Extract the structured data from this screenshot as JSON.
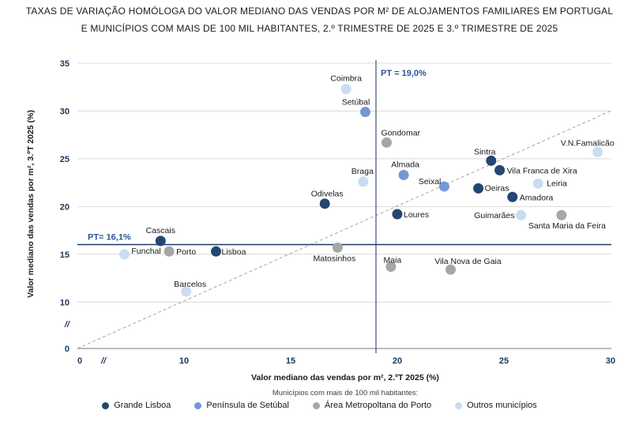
{
  "title": {
    "line1": "TAXAS DE VARIAÇÃO HOMÓLOGA DO VALOR MEDIANO DAS VENDAS POR M² DE ALOJAMENTOS FAMILIARES EM PORTUGAL",
    "line2": "E MUNICÍPIOS COM MAIS DE 100 MIL HABITANTES, 2.º TRIMESTRE DE 2025 E 3.º TRIMESTRE DE 2025"
  },
  "chart_data": {
    "type": "scatter",
    "xlabel": "Valor mediano das vendas por m², 2.ºT 2025 (%)",
    "ylabel": "Valor mediano das vendas por m², 3.ºT 2025 (%)",
    "axes": {
      "x": {
        "ticks": [
          10,
          15,
          20,
          25,
          30
        ],
        "zero_label": "0",
        "break_symbol": "//",
        "range_shown": [
          0,
          30
        ]
      },
      "y": {
        "ticks": [
          10,
          15,
          20,
          25,
          30,
          35
        ],
        "zero_label": "0",
        "break_symbol": "//",
        "range_shown": [
          0,
          35
        ]
      }
    },
    "grid": "horizontal-only",
    "legend_position": "bottom",
    "reference_lines": {
      "vertical": {
        "label": "PT = 19,0%",
        "value": 19.0,
        "color": "#3A5380"
      },
      "horizontal": {
        "label": "PT= 16,1%",
        "value": 16.1,
        "color": "#1F3864"
      },
      "diagonal": {
        "style": "dashed",
        "description": "identity line y = x",
        "color": "#A6A6A6"
      }
    },
    "series": [
      {
        "name": "Grande Lisboa",
        "color": "#234672",
        "points": [
          {
            "label": "Sintra",
            "x": 24.4,
            "y": 24.8,
            "anchor": "middle",
            "dx": -8,
            "dy": -8
          },
          {
            "label": "Vila Franca de Xira",
            "x": 24.8,
            "y": 23.8,
            "anchor": "start",
            "dx": 9,
            "dy": 4
          },
          {
            "label": "Oeiras",
            "x": 23.8,
            "y": 21.9,
            "anchor": "start",
            "dx": 8,
            "dy": 3
          },
          {
            "label": "Amadora",
            "x": 25.4,
            "y": 21.0,
            "anchor": "start",
            "dx": 9,
            "dy": 4
          },
          {
            "label": "Odivelas",
            "x": 16.6,
            "y": 20.3,
            "anchor": "middle",
            "dx": 3,
            "dy": -9
          },
          {
            "label": "Loures",
            "x": 20.0,
            "y": 19.2,
            "anchor": "start",
            "dx": 8,
            "dy": 4
          },
          {
            "label": "Cascais",
            "x": 8.9,
            "y": 16.4,
            "anchor": "middle",
            "dx": 0,
            "dy": -10
          },
          {
            "label": "Lisboa",
            "x": 11.5,
            "y": 15.3,
            "anchor": "start",
            "dx": 7,
            "dy": 4
          }
        ]
      },
      {
        "name": "Península de Setúbal",
        "color": "#7497D6",
        "points": [
          {
            "label": "Setúbal",
            "x": 18.5,
            "y": 29.9,
            "anchor": "middle",
            "dx": -12,
            "dy": -9
          },
          {
            "label": "Almada",
            "x": 20.3,
            "y": 23.3,
            "anchor": "middle",
            "dx": 2,
            "dy": -10
          },
          {
            "label": "Seixal",
            "x": 22.2,
            "y": 22.1,
            "anchor": "end",
            "dx": -4,
            "dy": -3
          }
        ]
      },
      {
        "name": "Área Metropoltana do Porto",
        "color": "#A6A6A6",
        "points": [
          {
            "label": "Gondomar",
            "x": 19.5,
            "y": 26.7,
            "anchor": "start",
            "dx": -7,
            "dy": -9
          },
          {
            "label": "Santa Maria da Feira",
            "x": 27.7,
            "y": 19.1,
            "anchor": "middle",
            "dx": 7,
            "dy": 17
          },
          {
            "label": "Porto",
            "x": 9.3,
            "y": 15.3,
            "anchor": "start",
            "dx": 9,
            "dy": 4
          },
          {
            "label": "Matosinhos",
            "x": 17.2,
            "y": 15.7,
            "anchor": "middle",
            "dx": -4,
            "dy": 17
          },
          {
            "label": "Maia",
            "x": 19.7,
            "y": 13.7,
            "anchor": "middle",
            "dx": 2,
            "dy": -5
          },
          {
            "label": "Vila Nova de Gaia",
            "x": 22.5,
            "y": 13.4,
            "anchor": "middle",
            "dx": 22,
            "dy": -7
          }
        ]
      },
      {
        "name": "Outros municípios",
        "color": "#CBDCF1",
        "points": [
          {
            "label": "Coimbra",
            "x": 17.6,
            "y": 32.3,
            "anchor": "middle",
            "dx": 0,
            "dy": -10
          },
          {
            "label": "V.N.Famalicão",
            "x": 29.4,
            "y": 25.7,
            "anchor": "middle",
            "dx": -13,
            "dy": -8
          },
          {
            "label": "Braga",
            "x": 18.4,
            "y": 22.6,
            "anchor": "middle",
            "dx": -1,
            "dy": -10
          },
          {
            "label": "Leiria",
            "x": 26.6,
            "y": 22.4,
            "anchor": "start",
            "dx": 11,
            "dy": 3
          },
          {
            "label": "Guimarães",
            "x": 25.8,
            "y": 19.1,
            "anchor": "end",
            "dx": -8,
            "dy": 4
          },
          {
            "label": "Funchal",
            "x": 7.2,
            "y": 15.0,
            "anchor": "start",
            "dx": 9,
            "dy": -1
          },
          {
            "label": "Barcelos",
            "x": 10.1,
            "y": 11.1,
            "anchor": "middle",
            "dx": 5,
            "dy": -6
          }
        ]
      }
    ]
  },
  "legend": {
    "note": "Municípios com mais de 100 mil habitantes:",
    "items": [
      {
        "label": "Grande Lisboa",
        "color": "#234672"
      },
      {
        "label": "Península de Setúbal",
        "color": "#7497D6"
      },
      {
        "label": "Área Metropoltana do Porto",
        "color": "#A6A6A6"
      },
      {
        "label": "Outros municípios",
        "color": "#CBDCF1"
      }
    ]
  },
  "colors": {
    "gridline": "#D9D9D9",
    "axis_line": "#A6A6A6",
    "tick_label": "#17375E",
    "pt_label": "#2E5597",
    "point_label": "#1a1a1a"
  }
}
